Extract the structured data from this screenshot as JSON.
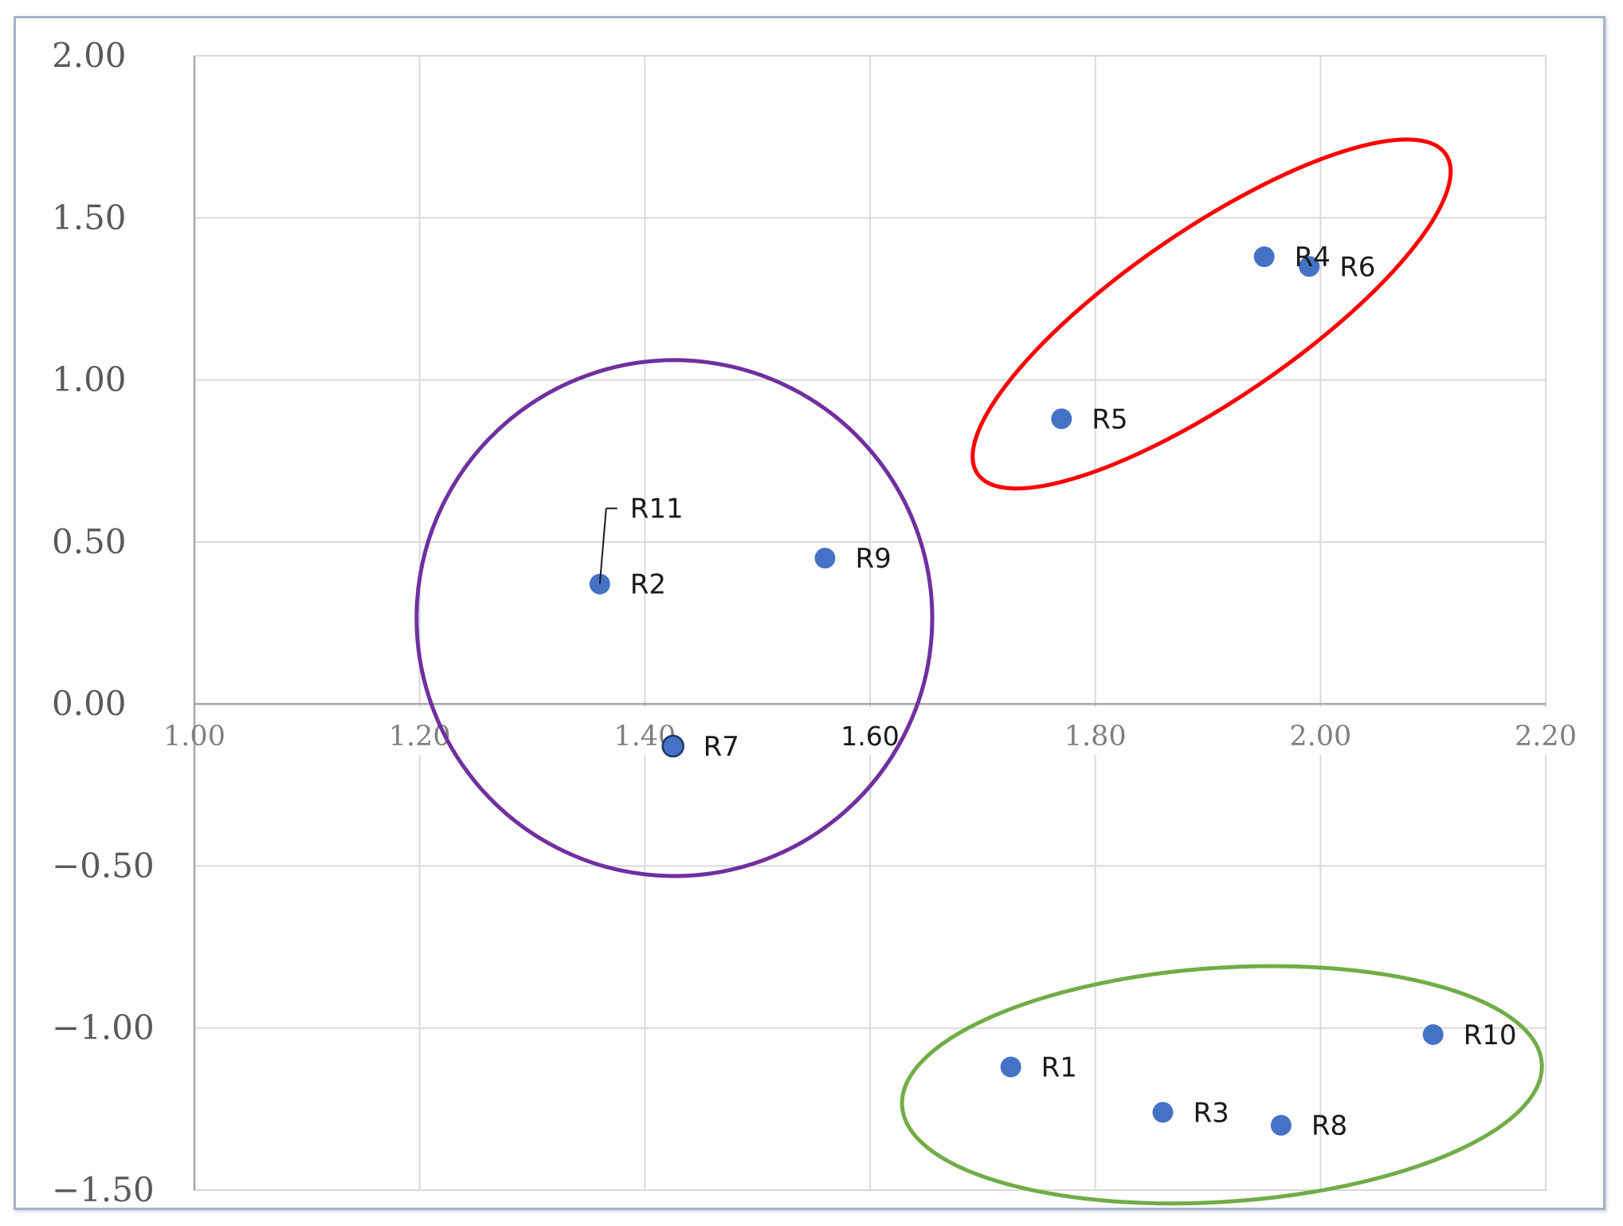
{
  "chart_data": {
    "type": "scatter",
    "title": "",
    "xlabel": "",
    "ylabel": "",
    "xlim": [
      1.0,
      2.2
    ],
    "ylim": [
      -1.5,
      2.0
    ],
    "x_ticks": [
      "1.00",
      "1.20",
      "1.40",
      "1.60",
      "1.80",
      "2.00",
      "2.20"
    ],
    "y_ticks": [
      "2.00",
      "1.50",
      "1.00",
      "0.50",
      "0.00",
      "−0.50",
      "−1.00",
      "−1.50"
    ],
    "grid": true,
    "marker_color": "#4472c4",
    "points": [
      {
        "label": "R1",
        "x": 1.725,
        "y": -1.12
      },
      {
        "label": "R2",
        "x": 1.36,
        "y": 0.37
      },
      {
        "label": "R3",
        "x": 1.86,
        "y": -1.26
      },
      {
        "label": "R4",
        "x": 1.95,
        "y": 1.38
      },
      {
        "label": "R5",
        "x": 1.77,
        "y": 0.88
      },
      {
        "label": "R6",
        "x": 1.99,
        "y": 1.35
      },
      {
        "label": "R7",
        "x": 1.425,
        "y": -0.13
      },
      {
        "label": "R8",
        "x": 1.965,
        "y": -1.3
      },
      {
        "label": "R9",
        "x": 1.56,
        "y": 0.45
      },
      {
        "label": "R10",
        "x": 2.1,
        "y": -1.02
      },
      {
        "label": "R11",
        "x": 1.36,
        "y": 0.37
      }
    ],
    "clusters": [
      {
        "color": "#ff0000",
        "members": [
          "R4",
          "R5",
          "R6"
        ]
      },
      {
        "color": "#7030a0",
        "members": [
          "R2",
          "R7",
          "R9",
          "R11"
        ]
      },
      {
        "color": "#70ad47",
        "members": [
          "R1",
          "R3",
          "R8",
          "R10"
        ]
      }
    ]
  }
}
